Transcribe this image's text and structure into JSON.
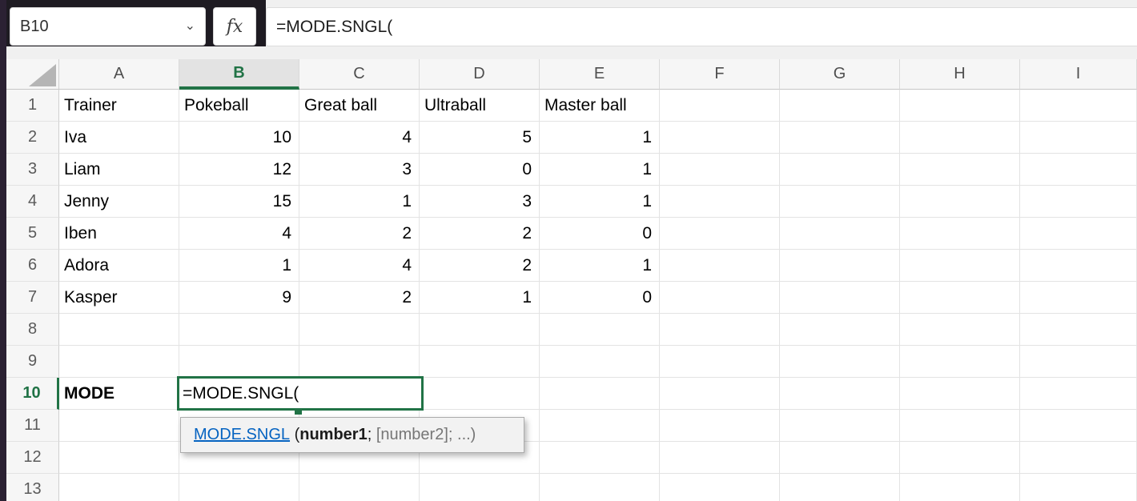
{
  "colors": {
    "accent_green": "#217346",
    "link_blue": "#0563c1",
    "dark_chrome": "#1e1b22",
    "left_stripe": "#2b2133"
  },
  "name_box": {
    "value": "B10",
    "chevron_icon": "⌄"
  },
  "formula_bar": {
    "fx_label": "fx",
    "formula": "=MODE.SNGL("
  },
  "grid": {
    "column_letters": [
      "A",
      "B",
      "C",
      "D",
      "E",
      "F",
      "G",
      "H",
      "I"
    ],
    "row_numbers": [
      "1",
      "2",
      "3",
      "4",
      "5",
      "6",
      "7",
      "8",
      "9",
      "10",
      "11",
      "12",
      "13"
    ],
    "selected_column": "B",
    "selected_row": "10",
    "active_cell": "B10"
  },
  "sheet": {
    "header_row": {
      "A": "Trainer",
      "B": "Pokeball",
      "C": "Great ball",
      "D": "Ultraball",
      "E": "Master ball"
    },
    "data_rows": [
      {
        "row": "2",
        "trainer": "Iva",
        "pokeball": "10",
        "great_ball": "4",
        "ultraball": "5",
        "master_ball": "1"
      },
      {
        "row": "3",
        "trainer": "Liam",
        "pokeball": "12",
        "great_ball": "3",
        "ultraball": "0",
        "master_ball": "1"
      },
      {
        "row": "4",
        "trainer": "Jenny",
        "pokeball": "15",
        "great_ball": "1",
        "ultraball": "3",
        "master_ball": "1"
      },
      {
        "row": "5",
        "trainer": "Iben",
        "pokeball": "4",
        "great_ball": "2",
        "ultraball": "2",
        "master_ball": "0"
      },
      {
        "row": "6",
        "trainer": "Adora",
        "pokeball": "1",
        "great_ball": "4",
        "ultraball": "2",
        "master_ball": "1"
      },
      {
        "row": "7",
        "trainer": "Kasper",
        "pokeball": "9",
        "great_ball": "2",
        "ultraball": "1",
        "master_ball": "0"
      }
    ],
    "a10_label": "MODE",
    "b10_formula": "=MODE.SNGL("
  },
  "tooltip": {
    "segments": [
      {
        "text": "MODE.SNGL",
        "style": "link"
      },
      {
        "text": " (",
        "style": "dark"
      },
      {
        "text": "number1",
        "style": "bold"
      },
      {
        "text": "; ",
        "style": "dark"
      },
      {
        "text": "[number2]; ...)",
        "style": "gray"
      }
    ]
  }
}
